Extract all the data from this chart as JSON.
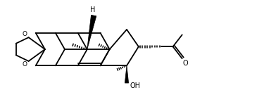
{
  "bg_color": "#ffffff",
  "line_color": "#000000",
  "lw": 1.3,
  "bold_lw": 5.0,
  "figsize": [
    3.75,
    1.45
  ],
  "dpi": 100,
  "xlim": [
    0,
    10
  ],
  "ylim": [
    0,
    3.87
  ]
}
